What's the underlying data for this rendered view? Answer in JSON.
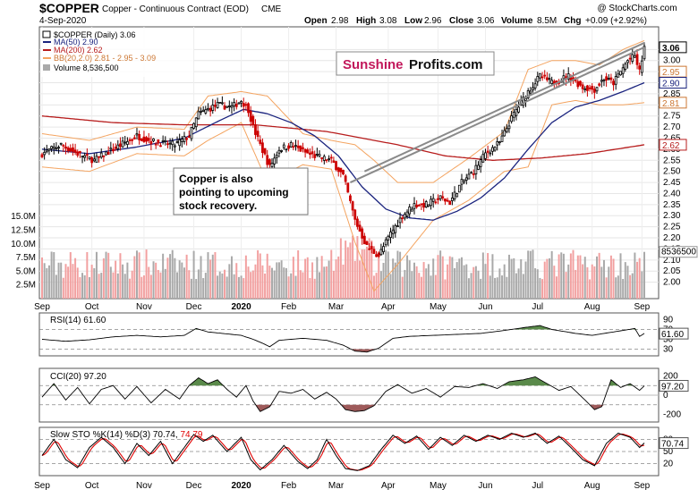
{
  "header": {
    "symbol": "$COPPER",
    "name": "Copper - Continuous Contract (EOD)",
    "exchange": "CME",
    "credit": "@ StockCharts.com",
    "date": "4-Sep-2020",
    "open_label": "Open",
    "open": "2.98",
    "high_label": "High",
    "high": "3.08",
    "low_label": "Low",
    "low": "2.96",
    "close_label": "Close",
    "close": "3.06",
    "volume_label": "Volume",
    "volume": "8.5M",
    "chg_label": "Chg",
    "chg": "+0.09 (+2.92%)"
  },
  "legend": {
    "symbol_line": "$COPPER (Daily) 3.06",
    "ma50": "MA(50) 2.90",
    "ma200": "MA(200) 2.62",
    "bb": "BB(20,2.0) 2.81 - 2.95 - 3.09",
    "volume": "Volume 8,536,500"
  },
  "watermark": {
    "part1": "Sunshine",
    "part2": "Profits.com"
  },
  "annotation": "Copper is also pointing to upcoming stock recovery.",
  "colors": {
    "up_candle": "#000000",
    "down_candle": "#cc0000",
    "ma50": "#1a237e",
    "ma200": "#b71c1c",
    "bb": "#f4a460",
    "vol_up": "#a9a9a9",
    "vol_down": "#f2a0a0",
    "fill_pos": "#5a8a4a",
    "fill_neg": "#9e5a5a",
    "sto_k": "#000000",
    "sto_d": "#e00000"
  },
  "x_axis": {
    "months": [
      {
        "label": "Sep",
        "i": 0
      },
      {
        "label": "Oct",
        "i": 21
      },
      {
        "label": "Nov",
        "i": 43
      },
      {
        "label": "Dec",
        "i": 64
      },
      {
        "label": "2020",
        "i": 84,
        "bold": true
      },
      {
        "label": "Feb",
        "i": 104
      },
      {
        "label": "Mar",
        "i": 124
      },
      {
        "label": "Apr",
        "i": 146
      },
      {
        "label": "May",
        "i": 167
      },
      {
        "label": "Jun",
        "i": 187
      },
      {
        "label": "Jul",
        "i": 209
      },
      {
        "label": "Aug",
        "i": 232
      },
      {
        "label": "Sep",
        "i": 253
      }
    ]
  },
  "chart_data": [
    {
      "type": "candlestick",
      "title": "$COPPER (Daily)",
      "period": "2019-09-04 to 2020-09-04",
      "ylim": [
        1.95,
        3.12
      ],
      "y_ticks": [
        2.0,
        2.05,
        2.1,
        2.15,
        2.2,
        2.25,
        2.3,
        2.35,
        2.4,
        2.45,
        2.5,
        2.55,
        2.6,
        2.65,
        2.7,
        2.75,
        2.8,
        2.85,
        2.9,
        2.95,
        3.0,
        3.05
      ],
      "y_tags": [
        {
          "text": "3.06",
          "value": 3.06,
          "color": "#000000",
          "bold": true
        },
        {
          "text": "2.95",
          "value": 2.95,
          "color": "#cc7733"
        },
        {
          "text": "2.90",
          "value": 2.9,
          "color": "#1a237e"
        },
        {
          "text": "2.81",
          "value": 2.81,
          "color": "#cc7733"
        },
        {
          "text": "2.62",
          "value": 2.62,
          "color": "#b71c1c"
        }
      ],
      "anchors": {
        "close": [
          [
            0,
            2.58
          ],
          [
            8,
            2.62
          ],
          [
            15,
            2.58
          ],
          [
            22,
            2.55
          ],
          [
            30,
            2.6
          ],
          [
            40,
            2.66
          ],
          [
            48,
            2.63
          ],
          [
            56,
            2.62
          ],
          [
            62,
            2.66
          ],
          [
            66,
            2.76
          ],
          [
            74,
            2.8
          ],
          [
            80,
            2.79
          ],
          [
            84,
            2.82
          ],
          [
            87,
            2.78
          ],
          [
            89,
            2.7
          ],
          [
            92,
            2.62
          ],
          [
            96,
            2.52
          ],
          [
            100,
            2.6
          ],
          [
            105,
            2.62
          ],
          [
            112,
            2.58
          ],
          [
            118,
            2.56
          ],
          [
            122,
            2.55
          ],
          [
            127,
            2.48
          ],
          [
            132,
            2.28
          ],
          [
            137,
            2.16
          ],
          [
            142,
            2.12
          ],
          [
            147,
            2.22
          ],
          [
            152,
            2.3
          ],
          [
            157,
            2.35
          ],
          [
            162,
            2.35
          ],
          [
            168,
            2.38
          ],
          [
            172,
            2.36
          ],
          [
            177,
            2.45
          ],
          [
            182,
            2.5
          ],
          [
            187,
            2.58
          ],
          [
            193,
            2.63
          ],
          [
            199,
            2.76
          ],
          [
            205,
            2.86
          ],
          [
            210,
            2.93
          ],
          [
            215,
            2.9
          ],
          [
            222,
            2.93
          ],
          [
            228,
            2.88
          ],
          [
            233,
            2.87
          ],
          [
            237,
            2.92
          ],
          [
            241,
            2.9
          ],
          [
            247,
            3.0
          ],
          [
            250,
            3.02
          ],
          [
            252,
            2.95
          ],
          [
            254,
            3.06
          ]
        ],
        "ma50": [
          [
            0,
            2.6
          ],
          [
            20,
            2.58
          ],
          [
            40,
            2.61
          ],
          [
            60,
            2.65
          ],
          [
            75,
            2.73
          ],
          [
            85,
            2.78
          ],
          [
            95,
            2.76
          ],
          [
            105,
            2.72
          ],
          [
            115,
            2.66
          ],
          [
            125,
            2.57
          ],
          [
            135,
            2.43
          ],
          [
            145,
            2.33
          ],
          [
            155,
            2.29
          ],
          [
            165,
            2.28
          ],
          [
            175,
            2.32
          ],
          [
            185,
            2.38
          ],
          [
            195,
            2.47
          ],
          [
            205,
            2.6
          ],
          [
            215,
            2.72
          ],
          [
            225,
            2.79
          ],
          [
            235,
            2.82
          ],
          [
            245,
            2.86
          ],
          [
            254,
            2.9
          ]
        ],
        "ma200": [
          [
            0,
            2.75
          ],
          [
            30,
            2.72
          ],
          [
            60,
            2.71
          ],
          [
            90,
            2.71
          ],
          [
            120,
            2.68
          ],
          [
            150,
            2.62
          ],
          [
            170,
            2.57
          ],
          [
            190,
            2.55
          ],
          [
            210,
            2.56
          ],
          [
            230,
            2.58
          ],
          [
            254,
            2.62
          ]
        ],
        "bb_upper": [
          [
            0,
            2.67
          ],
          [
            20,
            2.64
          ],
          [
            40,
            2.7
          ],
          [
            60,
            2.69
          ],
          [
            70,
            2.84
          ],
          [
            84,
            2.86
          ],
          [
            95,
            2.84
          ],
          [
            110,
            2.67
          ],
          [
            122,
            2.64
          ],
          [
            132,
            2.62
          ],
          [
            140,
            2.55
          ],
          [
            150,
            2.45
          ],
          [
            165,
            2.45
          ],
          [
            180,
            2.56
          ],
          [
            195,
            2.68
          ],
          [
            205,
            2.96
          ],
          [
            215,
            3.0
          ],
          [
            225,
            3.0
          ],
          [
            235,
            2.98
          ],
          [
            245,
            3.05
          ],
          [
            254,
            3.09
          ]
        ],
        "bb_lower": [
          [
            0,
            2.52
          ],
          [
            20,
            2.5
          ],
          [
            40,
            2.58
          ],
          [
            60,
            2.57
          ],
          [
            70,
            2.64
          ],
          [
            84,
            2.72
          ],
          [
            95,
            2.45
          ],
          [
            110,
            2.53
          ],
          [
            122,
            2.51
          ],
          [
            132,
            2.18
          ],
          [
            140,
            1.96
          ],
          [
            150,
            2.08
          ],
          [
            165,
            2.28
          ],
          [
            180,
            2.37
          ],
          [
            195,
            2.5
          ],
          [
            205,
            2.52
          ],
          [
            215,
            2.8
          ],
          [
            225,
            2.82
          ],
          [
            235,
            2.8
          ],
          [
            245,
            2.8
          ],
          [
            254,
            2.81
          ]
        ]
      },
      "trendlines": [
        [
          [
            136,
            2.5
          ],
          [
            254,
            3.08
          ]
        ],
        [
          [
            130,
            2.45
          ],
          [
            254,
            3.06
          ]
        ]
      ]
    },
    {
      "type": "bar",
      "title": "Volume",
      "ylim": [
        0,
        16000000
      ],
      "y_ticks": [
        {
          "label": "2.5M",
          "value": 2500000
        },
        {
          "label": "5.0M",
          "value": 5000000
        },
        {
          "label": "7.5M",
          "value": 7500000
        },
        {
          "label": "10.0M",
          "value": 10000000
        },
        {
          "label": "12.5M",
          "value": 12500000
        },
        {
          "label": "15.0M",
          "value": 15000000
        }
      ],
      "last_value_tag": "8536500",
      "last": 8536500
    },
    {
      "type": "line",
      "title": "RSI(14) 61.60",
      "ylim": [
        20,
        100
      ],
      "y_ticks": [
        30,
        50,
        70,
        90
      ],
      "tag": "61.60",
      "ref_lines": [
        30,
        70
      ],
      "anchors": [
        [
          0,
          50
        ],
        [
          10,
          46
        ],
        [
          20,
          49
        ],
        [
          30,
          55
        ],
        [
          40,
          58
        ],
        [
          50,
          55
        ],
        [
          60,
          58
        ],
        [
          65,
          72
        ],
        [
          70,
          65
        ],
        [
          84,
          58
        ],
        [
          89,
          50
        ],
        [
          93,
          42
        ],
        [
          96,
          35
        ],
        [
          100,
          48
        ],
        [
          110,
          52
        ],
        [
          120,
          48
        ],
        [
          127,
          38
        ],
        [
          132,
          26
        ],
        [
          137,
          24
        ],
        [
          142,
          32
        ],
        [
          148,
          52
        ],
        [
          155,
          56
        ],
        [
          165,
          58
        ],
        [
          175,
          60
        ],
        [
          185,
          62
        ],
        [
          195,
          68
        ],
        [
          205,
          75
        ],
        [
          210,
          78
        ],
        [
          215,
          70
        ],
        [
          220,
          66
        ],
        [
          225,
          62
        ],
        [
          232,
          58
        ],
        [
          237,
          62
        ],
        [
          245,
          68
        ],
        [
          250,
          72
        ],
        [
          252,
          56
        ],
        [
          254,
          62
        ]
      ]
    },
    {
      "type": "line",
      "title": "CCI(20) 97.20",
      "ylim": [
        -260,
        260
      ],
      "y_ticks": [
        {
          "label": "200",
          "value": 200
        },
        {
          "label": "0",
          "value": 0
        },
        {
          "label": "-200",
          "value": -200
        }
      ],
      "tag": "97.20",
      "ref_lines": [
        100,
        -100
      ],
      "anchors": [
        [
          0,
          -20
        ],
        [
          5,
          120
        ],
        [
          10,
          -50
        ],
        [
          15,
          80
        ],
        [
          20,
          -90
        ],
        [
          25,
          60
        ],
        [
          30,
          100
        ],
        [
          35,
          -40
        ],
        [
          40,
          90
        ],
        [
          46,
          -80
        ],
        [
          52,
          60
        ],
        [
          58,
          -40
        ],
        [
          62,
          100
        ],
        [
          66,
          180
        ],
        [
          70,
          120
        ],
        [
          74,
          160
        ],
        [
          78,
          60
        ],
        [
          82,
          -20
        ],
        [
          86,
          100
        ],
        [
          89,
          -60
        ],
        [
          92,
          -170
        ],
        [
          96,
          -120
        ],
        [
          100,
          40
        ],
        [
          105,
          20
        ],
        [
          110,
          60
        ],
        [
          115,
          -40
        ],
        [
          120,
          30
        ],
        [
          124,
          -40
        ],
        [
          128,
          -150
        ],
        [
          132,
          -170
        ],
        [
          136,
          -160
        ],
        [
          140,
          -110
        ],
        [
          145,
          40
        ],
        [
          150,
          110
        ],
        [
          156,
          20
        ],
        [
          162,
          70
        ],
        [
          168,
          -20
        ],
        [
          174,
          90
        ],
        [
          180,
          80
        ],
        [
          186,
          120
        ],
        [
          192,
          70
        ],
        [
          197,
          140
        ],
        [
          203,
          160
        ],
        [
          208,
          190
        ],
        [
          213,
          120
        ],
        [
          218,
          50
        ],
        [
          223,
          90
        ],
        [
          229,
          -50
        ],
        [
          233,
          -150
        ],
        [
          236,
          -120
        ],
        [
          240,
          160
        ],
        [
          244,
          80
        ],
        [
          248,
          120
        ],
        [
          252,
          50
        ],
        [
          254,
          97
        ]
      ]
    },
    {
      "type": "line",
      "title": "Slow STO %K(14) %D(3) 70.74, 74.79",
      "ylim": [
        -5,
        105
      ],
      "y_ticks": [
        20,
        50,
        80
      ],
      "tag": "70.74",
      "ref_lines": [
        20,
        50,
        80
      ],
      "anchors": [
        [
          0,
          40
        ],
        [
          5,
          80
        ],
        [
          10,
          30
        ],
        [
          15,
          10
        ],
        [
          20,
          60
        ],
        [
          25,
          85
        ],
        [
          30,
          60
        ],
        [
          35,
          20
        ],
        [
          40,
          70
        ],
        [
          45,
          40
        ],
        [
          50,
          75
        ],
        [
          55,
          20
        ],
        [
          60,
          60
        ],
        [
          64,
          92
        ],
        [
          68,
          75
        ],
        [
          72,
          90
        ],
        [
          78,
          50
        ],
        [
          84,
          85
        ],
        [
          88,
          30
        ],
        [
          92,
          5
        ],
        [
          97,
          30
        ],
        [
          102,
          65
        ],
        [
          108,
          25
        ],
        [
          112,
          8
        ],
        [
          116,
          30
        ],
        [
          120,
          80
        ],
        [
          124,
          40
        ],
        [
          128,
          8
        ],
        [
          133,
          3
        ],
        [
          138,
          15
        ],
        [
          143,
          55
        ],
        [
          148,
          90
        ],
        [
          153,
          70
        ],
        [
          158,
          88
        ],
        [
          163,
          55
        ],
        [
          168,
          85
        ],
        [
          173,
          65
        ],
        [
          178,
          90
        ],
        [
          183,
          75
        ],
        [
          188,
          90
        ],
        [
          193,
          80
        ],
        [
          198,
          95
        ],
        [
          203,
          85
        ],
        [
          208,
          95
        ],
        [
          213,
          70
        ],
        [
          218,
          88
        ],
        [
          223,
          60
        ],
        [
          228,
          30
        ],
        [
          233,
          15
        ],
        [
          238,
          70
        ],
        [
          243,
          95
        ],
        [
          248,
          85
        ],
        [
          252,
          60
        ],
        [
          254,
          71
        ]
      ]
    }
  ]
}
